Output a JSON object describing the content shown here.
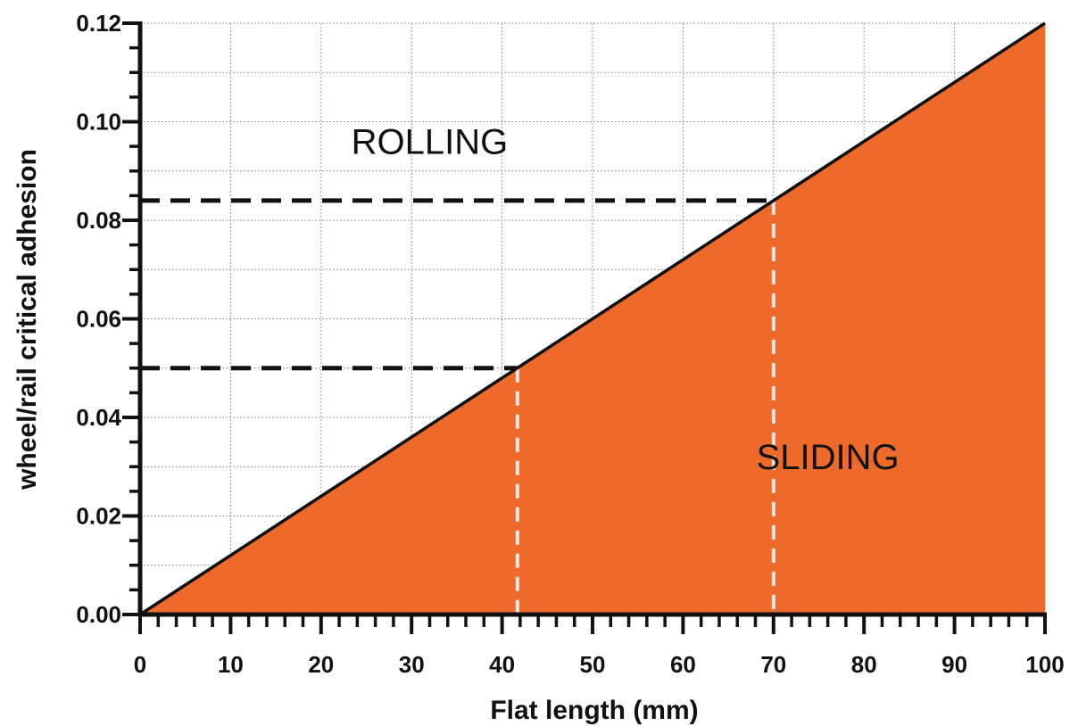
{
  "chart_data": {
    "type": "area",
    "title": "",
    "xlabel": "Flat length (mm)",
    "ylabel": "wheel/rail critical adhesion",
    "xlim": [
      0,
      100
    ],
    "ylim": [
      0,
      0.12
    ],
    "x_ticks": [
      0,
      10,
      20,
      30,
      40,
      50,
      60,
      70,
      80,
      90,
      100
    ],
    "x_tick_labels": [
      "0",
      "10",
      "20",
      "30",
      "40",
      "50",
      "60",
      "70",
      "80",
      "90",
      "100"
    ],
    "y_ticks": [
      0,
      0.02,
      0.04,
      0.06,
      0.08,
      0.1,
      0.12
    ],
    "y_tick_labels": [
      "0.00",
      "0.02",
      "0.04",
      "0.06",
      "0.08",
      "0.10",
      "0.12"
    ],
    "grid": true,
    "series": [
      {
        "x": [
          0,
          100
        ],
        "y": [
          0.0,
          0.12
        ]
      }
    ],
    "fill_below_line": true,
    "fill_color": "#EE6A2A",
    "line_color": "#111111",
    "annotations": [
      {
        "text": "ROLLING",
        "x": 32,
        "y": 0.096
      },
      {
        "text": "SLIDING",
        "x": 76,
        "y": 0.032
      }
    ],
    "reference_points": [
      {
        "x": 41.7,
        "y": 0.05
      },
      {
        "x": 70,
        "y": 0.084
      }
    ],
    "reference_line_colors": {
      "horizontal": "#111111",
      "vertical": "#e6e6e6"
    }
  }
}
